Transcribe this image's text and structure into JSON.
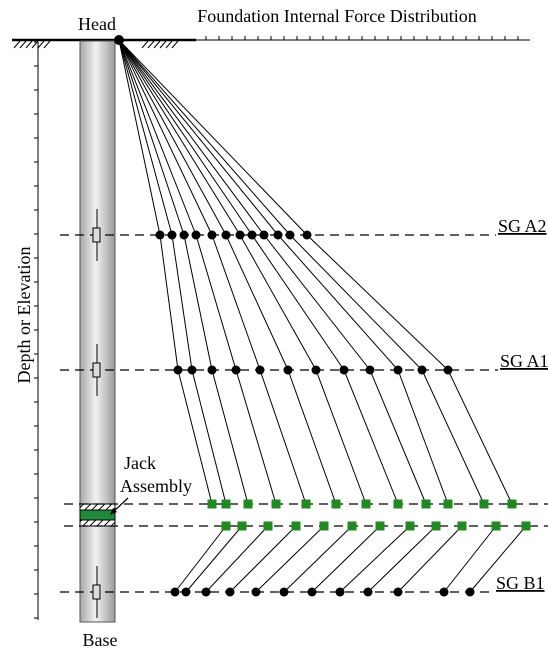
{
  "header": {
    "title": "Foundation Internal Force Distribution"
  },
  "labels": {
    "head": "Head",
    "base": "Base",
    "y_axis": "Depth or Elevation",
    "jack": [
      "Jack",
      "Assembly"
    ],
    "gauges": [
      "SG A2",
      "SG A1",
      "SG B1"
    ]
  }
}
